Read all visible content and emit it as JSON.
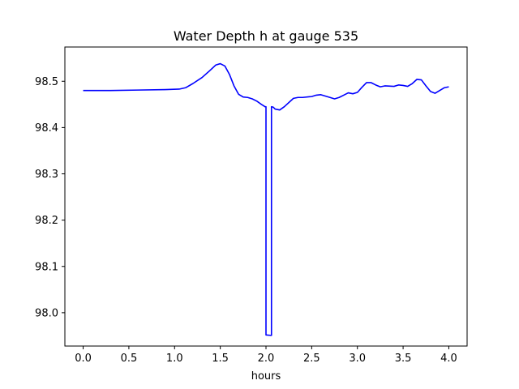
{
  "chart_data": {
    "type": "line",
    "title": "Water Depth h at gauge 535",
    "xlabel": "hours",
    "ylabel": "",
    "xlim": [
      -0.2,
      4.2
    ],
    "ylim": [
      97.928,
      98.574
    ],
    "xticks": [
      0.0,
      0.5,
      1.0,
      1.5,
      2.0,
      2.5,
      3.0,
      3.5,
      4.0
    ],
    "xtick_labels": [
      "0.0",
      "0.5",
      "1.0",
      "1.5",
      "2.0",
      "2.5",
      "3.0",
      "3.5",
      "4.0"
    ],
    "yticks": [
      98.0,
      98.1,
      98.2,
      98.3,
      98.4,
      98.5
    ],
    "ytick_labels": [
      "98.0",
      "98.1",
      "98.2",
      "98.3",
      "98.4",
      "98.5"
    ],
    "grid": false,
    "series": [
      {
        "color": "#0000ff",
        "x": [
          0.0,
          0.3,
          0.6,
          0.9,
          1.05,
          1.12,
          1.2,
          1.3,
          1.38,
          1.45,
          1.5,
          1.55,
          1.6,
          1.65,
          1.7,
          1.75,
          1.8,
          1.85,
          1.9,
          1.95,
          1.99,
          2.0,
          2.0,
          2.06,
          2.06,
          2.08,
          2.1,
          2.15,
          2.2,
          2.3,
          2.35,
          2.4,
          2.5,
          2.55,
          2.6,
          2.7,
          2.75,
          2.8,
          2.85,
          2.9,
          2.95,
          3.0,
          3.05,
          3.1,
          3.15,
          3.2,
          3.25,
          3.3,
          3.4,
          3.45,
          3.5,
          3.55,
          3.6,
          3.65,
          3.7,
          3.75,
          3.8,
          3.85,
          3.9,
          3.95,
          4.0
        ],
        "values": [
          98.48,
          98.48,
          98.481,
          98.482,
          98.483,
          98.486,
          98.495,
          98.508,
          98.522,
          98.535,
          98.538,
          98.533,
          98.515,
          98.49,
          98.472,
          98.466,
          98.465,
          98.462,
          98.457,
          98.45,
          98.445,
          98.445,
          97.952,
          97.951,
          98.445,
          98.444,
          98.44,
          98.438,
          98.445,
          98.463,
          98.465,
          98.465,
          98.467,
          98.47,
          98.471,
          98.465,
          98.462,
          98.465,
          98.47,
          98.475,
          98.473,
          98.476,
          98.487,
          98.497,
          98.497,
          98.492,
          98.488,
          98.49,
          98.489,
          98.492,
          98.491,
          98.489,
          98.495,
          98.504,
          98.503,
          98.49,
          98.478,
          98.474,
          98.48,
          98.486,
          98.488
        ]
      }
    ]
  }
}
